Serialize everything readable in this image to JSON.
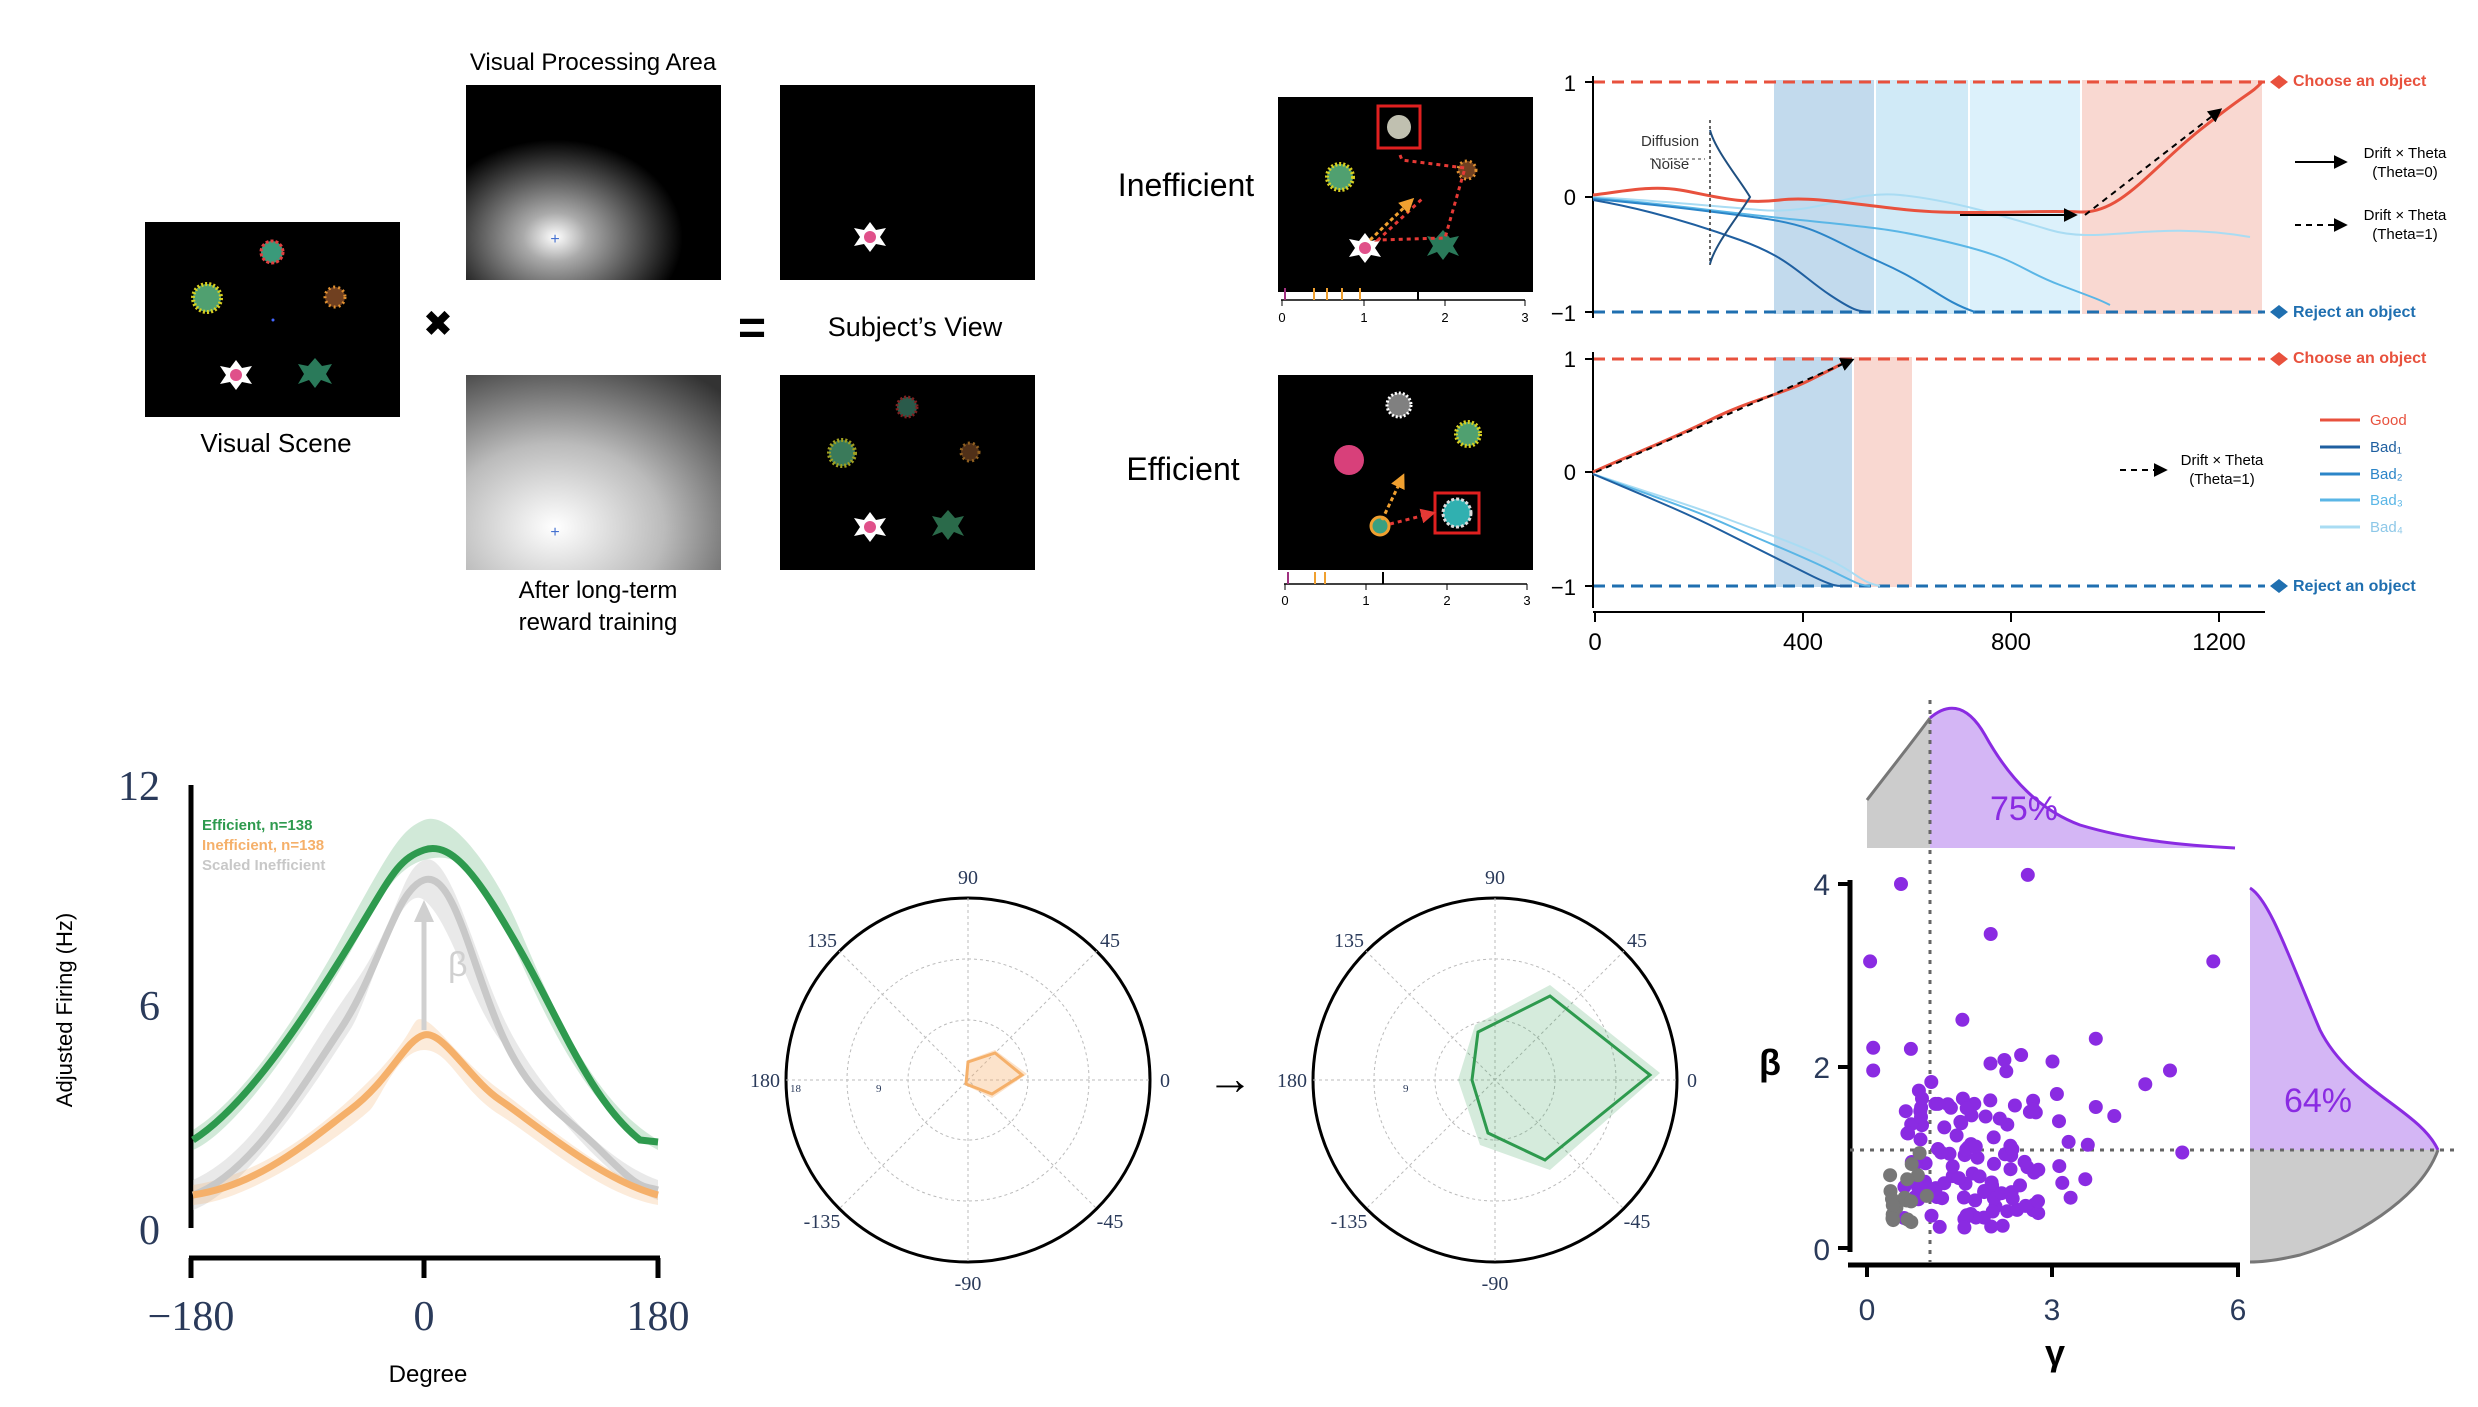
{
  "colors": {
    "good": "#e8513d",
    "bad1": "#1f5fa0",
    "bad2": "#2b85c8",
    "bad3": "#5ab6e6",
    "bad4": "#a9dcf3",
    "efficient": "#2e9a4e",
    "inefficient": "#f5b06a",
    "scaled": "#c8c8c8",
    "purple": "#8a2be2",
    "gray_point": "#777777"
  },
  "panel_a": {
    "visual_scene_label": "Visual Scene",
    "processing_area_label": "Visual Processing Area",
    "subjects_view_label": "Subject’s View",
    "training_label_1": "After long-term",
    "training_label_2": "reward training",
    "times_symbol": "✖",
    "equals_symbol": "="
  },
  "panel_b": {
    "inefficient_label": "Inefficient",
    "efficient_label": "Efficient",
    "diffusion_1": "Diffusion",
    "diffusion_2": "Noise",
    "choose": "Choose an object",
    "reject": "Reject an object",
    "legend_drift": "Drift × Theta",
    "theta0": "(Theta=0)",
    "theta1": "(Theta=1)",
    "legend_items": [
      "Good",
      "Bad₁",
      "Bad₂",
      "Bad₃",
      "Bad₄"
    ],
    "y_ticks": [
      "1",
      "0",
      "−1"
    ],
    "x_ticks": [
      "0",
      "400",
      "800",
      "1200"
    ],
    "mini_ticks": [
      "0",
      "1",
      "2",
      "3"
    ]
  },
  "panel_c": {
    "ylabel": "Adjusted Firing (Hz)",
    "xlabel": "Degree",
    "legend_efficient": "Efficient, n=138",
    "legend_inefficient": "Inefficient, n=138",
    "legend_scaled": "Scaled Inefficient",
    "beta": "β",
    "y_ticks": [
      "0",
      "6",
      "12"
    ],
    "x_ticks": [
      "−180",
      "0",
      "180"
    ]
  },
  "panel_d": {
    "angle_labels": [
      "90",
      "45",
      "0",
      "-45",
      "-90",
      "-135",
      "180",
      "135"
    ],
    "ring_labels": [
      "18",
      "9"
    ],
    "arrow": "→"
  },
  "panel_e": {
    "ylabel": "β",
    "xlabel": "γ",
    "top_pct": "75%",
    "right_pct": "64%",
    "x_ticks": [
      "0",
      "3",
      "6"
    ],
    "y_ticks": [
      "0",
      "2",
      "4"
    ]
  }
}
